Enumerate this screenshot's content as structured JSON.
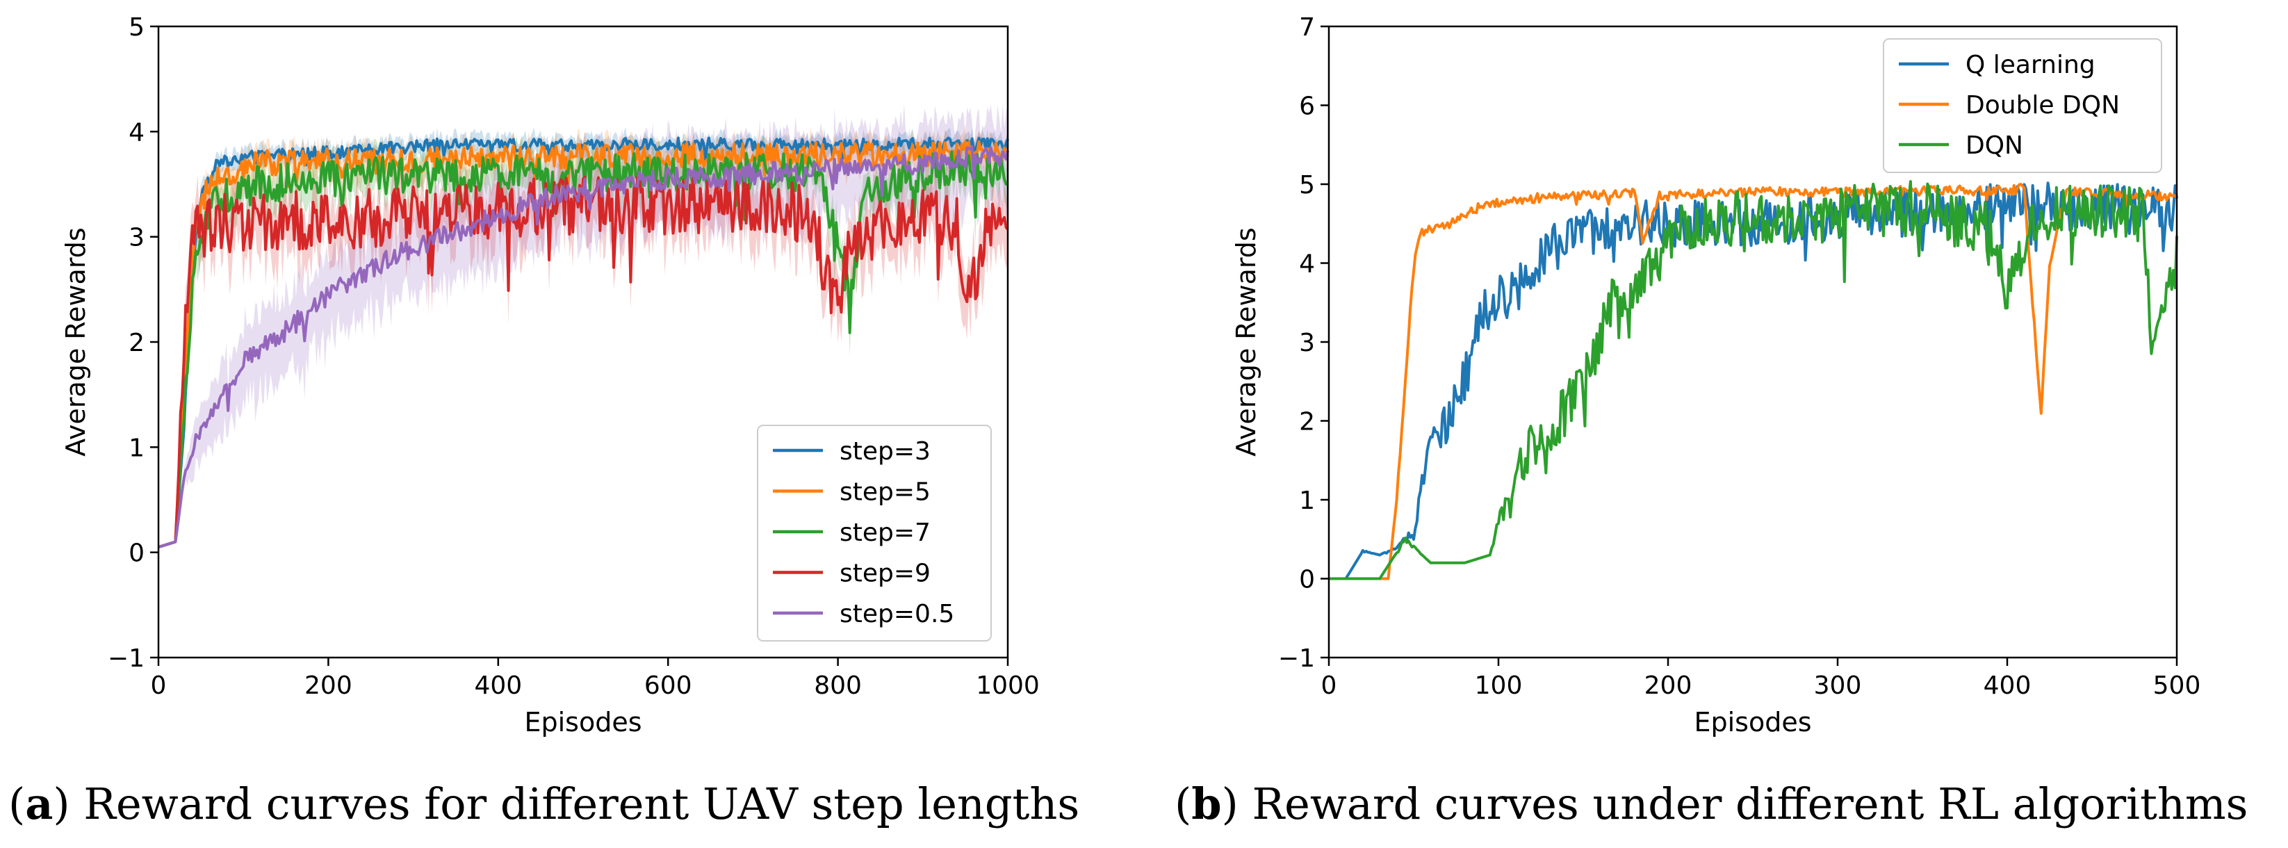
{
  "colors": {
    "blue": "#1f77b4",
    "orange": "#ff7f0e",
    "green": "#2ca02c",
    "red": "#d62728",
    "purple": "#9467bd"
  },
  "captions": {
    "a_tag": "a",
    "a_text": " Reward curves for different UAV step lengths",
    "b_tag": "b",
    "b_text": " Reward curves under different RL algorithms"
  },
  "chart_data": [
    {
      "type": "line",
      "id": "a",
      "xlabel": "Episodes",
      "ylabel": "Average Rewards",
      "xlim": [
        0,
        1000
      ],
      "ylim": [
        -1,
        5
      ],
      "xticks": [
        "0",
        "200",
        "400",
        "600",
        "800",
        "1000"
      ],
      "yticks": [
        "−1",
        "0",
        "1",
        "2",
        "3",
        "4",
        "5"
      ],
      "legend_position": "lower-right",
      "series": [
        {
          "name": "step=3",
          "color": "#1f77b4",
          "points": [
            [
              0,
              0.05
            ],
            [
              20,
              0.1
            ],
            [
              30,
              1.2
            ],
            [
              40,
              2.7
            ],
            [
              50,
              3.4
            ],
            [
              70,
              3.7
            ],
            [
              100,
              3.75
            ],
            [
              150,
              3.78
            ],
            [
              200,
              3.8
            ],
            [
              250,
              3.82
            ],
            [
              300,
              3.86
            ],
            [
              350,
              3.88
            ],
            [
              400,
              3.88
            ],
            [
              450,
              3.87
            ],
            [
              500,
              3.88
            ],
            [
              600,
              3.88
            ],
            [
              700,
              3.88
            ],
            [
              800,
              3.88
            ],
            [
              900,
              3.88
            ],
            [
              1000,
              3.88
            ]
          ],
          "noise": 0.06,
          "band": 0.1
        },
        {
          "name": "step=5",
          "color": "#ff7f0e",
          "points": [
            [
              0,
              0.05
            ],
            [
              20,
              0.1
            ],
            [
              30,
              1.5
            ],
            [
              40,
              2.9
            ],
            [
              55,
              3.5
            ],
            [
              80,
              3.6
            ],
            [
              120,
              3.7
            ],
            [
              200,
              3.72
            ],
            [
              300,
              3.72
            ],
            [
              400,
              3.75
            ],
            [
              500,
              3.77
            ],
            [
              600,
              3.77
            ],
            [
              700,
              3.78
            ],
            [
              800,
              3.78
            ],
            [
              900,
              3.78
            ],
            [
              1000,
              3.8
            ]
          ],
          "noise": 0.12,
          "band": 0.15
        },
        {
          "name": "step=7",
          "color": "#2ca02c",
          "points": [
            [
              0,
              0.05
            ],
            [
              20,
              0.1
            ],
            [
              30,
              1.3
            ],
            [
              40,
              2.5
            ],
            [
              55,
              3.2
            ],
            [
              80,
              3.4
            ],
            [
              120,
              3.5
            ],
            [
              200,
              3.55
            ],
            [
              300,
              3.6
            ],
            [
              400,
              3.6
            ],
            [
              500,
              3.6
            ],
            [
              600,
              3.62
            ],
            [
              700,
              3.62
            ],
            [
              780,
              3.6
            ],
            [
              815,
              2.4
            ],
            [
              830,
              3.4
            ],
            [
              900,
              3.62
            ],
            [
              1000,
              3.65
            ]
          ],
          "noise": 0.18,
          "band": 0.2
        },
        {
          "name": "step=9",
          "color": "#d62728",
          "points": [
            [
              0,
              0.05
            ],
            [
              20,
              0.1
            ],
            [
              28,
              1.6
            ],
            [
              38,
              2.9
            ],
            [
              50,
              3.1
            ],
            [
              100,
              3.15
            ],
            [
              200,
              3.15
            ],
            [
              300,
              3.2
            ],
            [
              400,
              3.25
            ],
            [
              500,
              3.3
            ],
            [
              600,
              3.3
            ],
            [
              700,
              3.3
            ],
            [
              770,
              3.2
            ],
            [
              790,
              2.5
            ],
            [
              800,
              2.35
            ],
            [
              815,
              3.0
            ],
            [
              900,
              3.2
            ],
            [
              940,
              3.1
            ],
            [
              955,
              2.3
            ],
            [
              970,
              3.0
            ],
            [
              1000,
              3.3
            ]
          ],
          "noise": 0.28,
          "band": 0.3
        },
        {
          "name": "step=0.5",
          "color": "#9467bd",
          "points": [
            [
              0,
              0.05
            ],
            [
              20,
              0.1
            ],
            [
              30,
              0.7
            ],
            [
              45,
              1.1
            ],
            [
              70,
              1.4
            ],
            [
              100,
              1.8
            ],
            [
              150,
              2.1
            ],
            [
              200,
              2.45
            ],
            [
              250,
              2.7
            ],
            [
              300,
              2.9
            ],
            [
              350,
              3.05
            ],
            [
              400,
              3.2
            ],
            [
              450,
              3.35
            ],
            [
              500,
              3.45
            ],
            [
              600,
              3.55
            ],
            [
              700,
              3.6
            ],
            [
              800,
              3.65
            ],
            [
              900,
              3.7
            ],
            [
              1000,
              3.8
            ]
          ],
          "noise": 0.1,
          "band": 0.45
        }
      ]
    },
    {
      "type": "line",
      "id": "b",
      "xlabel": "Episodes",
      "ylabel": "Average Rewards",
      "xlim": [
        0,
        500
      ],
      "ylim": [
        -1,
        7
      ],
      "xticks": [
        "0",
        "100",
        "200",
        "300",
        "400",
        "500"
      ],
      "yticks": [
        "−1",
        "0",
        "1",
        "2",
        "3",
        "4",
        "5",
        "6",
        "7"
      ],
      "legend_position": "upper-right",
      "series": [
        {
          "name": "Q learning",
          "color": "#1f77b4",
          "points": [
            [
              0,
              0.0
            ],
            [
              10,
              0.0
            ],
            [
              20,
              0.35
            ],
            [
              30,
              0.3
            ],
            [
              40,
              0.4
            ],
            [
              50,
              0.6
            ],
            [
              60,
              1.8
            ],
            [
              70,
              2.0
            ],
            [
              80,
              2.5
            ],
            [
              90,
              3.3
            ],
            [
              100,
              3.6
            ],
            [
              110,
              3.6
            ],
            [
              120,
              4.0
            ],
            [
              140,
              4.3
            ],
            [
              160,
              4.4
            ],
            [
              180,
              4.5
            ],
            [
              200,
              4.5
            ],
            [
              250,
              4.5
            ],
            [
              300,
              4.6
            ],
            [
              350,
              4.65
            ],
            [
              400,
              4.75
            ],
            [
              450,
              4.7
            ],
            [
              500,
              4.7
            ]
          ],
          "noise": 0.3
        },
        {
          "name": "Double DQN",
          "color": "#ff7f0e",
          "points": [
            [
              0,
              0.0
            ],
            [
              20,
              0.0
            ],
            [
              35,
              0.0
            ],
            [
              40,
              1.0
            ],
            [
              45,
              2.5
            ],
            [
              50,
              4.0
            ],
            [
              55,
              4.4
            ],
            [
              70,
              4.5
            ],
            [
              90,
              4.75
            ],
            [
              120,
              4.82
            ],
            [
              150,
              4.85
            ],
            [
              180,
              4.9
            ],
            [
              185,
              4.3
            ],
            [
              195,
              4.85
            ],
            [
              250,
              4.9
            ],
            [
              300,
              4.9
            ],
            [
              350,
              4.92
            ],
            [
              400,
              4.92
            ],
            [
              410,
              4.95
            ],
            [
              415,
              3.5
            ],
            [
              420,
              2.1
            ],
            [
              425,
              4.0
            ],
            [
              435,
              4.9
            ],
            [
              500,
              4.85
            ]
          ],
          "noise": 0.06
        },
        {
          "name": "DQN",
          "color": "#2ca02c",
          "points": [
            [
              0,
              0.0
            ],
            [
              30,
              0.0
            ],
            [
              45,
              0.5
            ],
            [
              60,
              0.2
            ],
            [
              80,
              0.2
            ],
            [
              95,
              0.3
            ],
            [
              100,
              0.7
            ],
            [
              110,
              1.3
            ],
            [
              120,
              1.7
            ],
            [
              130,
              1.8
            ],
            [
              145,
              2.3
            ],
            [
              155,
              2.8
            ],
            [
              165,
              3.5
            ],
            [
              175,
              3.3
            ],
            [
              185,
              3.8
            ],
            [
              200,
              4.3
            ],
            [
              220,
              4.5
            ],
            [
              250,
              4.6
            ],
            [
              300,
              4.65
            ],
            [
              350,
              4.7
            ],
            [
              390,
              4.4
            ],
            [
              400,
              3.6
            ],
            [
              410,
              4.2
            ],
            [
              420,
              4.6
            ],
            [
              450,
              4.7
            ],
            [
              480,
              4.6
            ],
            [
              485,
              3.2
            ],
            [
              495,
              3.6
            ],
            [
              500,
              4.0
            ]
          ],
          "noise": 0.35
        }
      ]
    }
  ]
}
